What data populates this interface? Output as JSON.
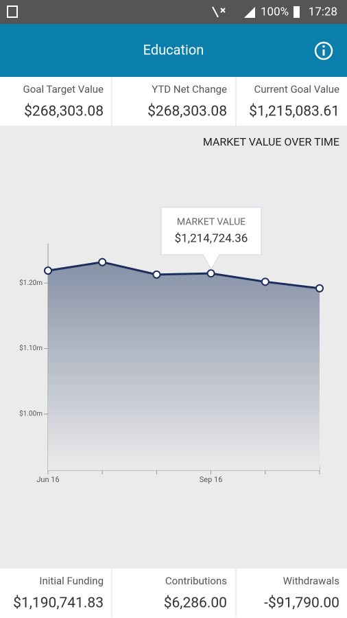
{
  "status_bar": {
    "battery": "100%",
    "time": "17:28"
  },
  "header": {
    "title": "Education"
  },
  "summary": [
    {
      "label": "Goal Target Value",
      "value": "$268,303.08"
    },
    {
      "label": "YTD Net Change",
      "value": "$268,303.08"
    },
    {
      "label": "Current Goal Value",
      "value": "$1,215,083.61"
    }
  ],
  "chart_data": {
    "type": "line",
    "title": "MARKET VALUE OVER TIME",
    "categories": [
      "Jun 16",
      null,
      null,
      "Sep 16",
      null,
      null
    ],
    "values": [
      1219000,
      1232000,
      1213000,
      1214724.36,
      1202000,
      1192000
    ],
    "color": "#1b2e5e",
    "area": true,
    "ylim": [
      914000,
      1260000
    ],
    "yticks": [
      {
        "value": 1000000,
        "label": "$1.00m"
      },
      {
        "value": 1100000,
        "label": "$1.10m"
      },
      {
        "value": 1200000,
        "label": "$1.20m"
      }
    ]
  },
  "tooltip": {
    "label": "MARKET VALUE",
    "value": "$1,214,724.36"
  },
  "footer": [
    {
      "label": "Initial Funding",
      "value": "$1,190,741.83"
    },
    {
      "label": "Contributions",
      "value": "$6,286.00"
    },
    {
      "label": "Withdrawals",
      "value": "-$91,790.00"
    }
  ]
}
